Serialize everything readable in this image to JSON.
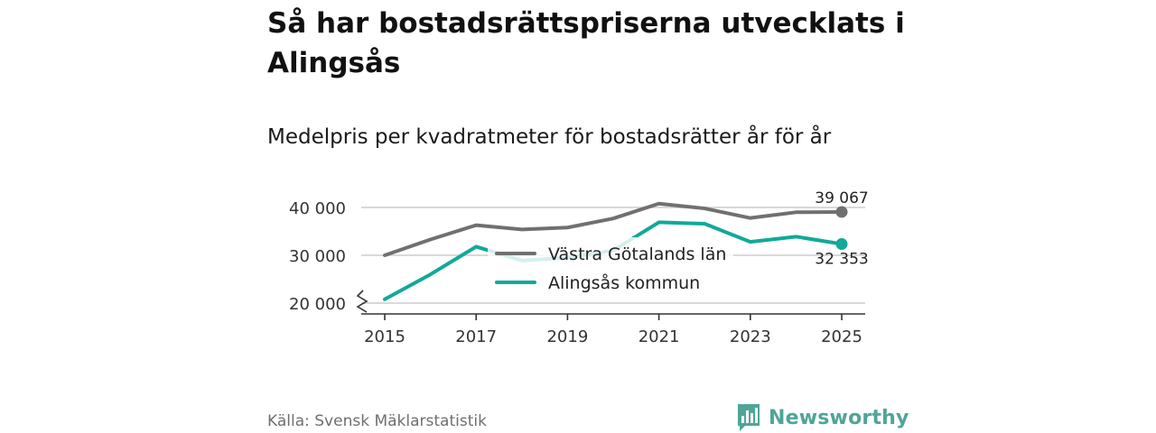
{
  "title": "Så har bostadsrättspriserna utvecklats i Alingsås",
  "subtitle": "Medelpris per kvadratmeter för bostadsrätter år för år",
  "source": "Källa: Svensk Mäklarstatistik",
  "brand": "Newsworthy",
  "colors": {
    "grey_series": "#707070",
    "teal_series": "#13a89a",
    "brand": "#4fa597"
  },
  "chart_data": {
    "type": "line",
    "x": [
      2015,
      2016,
      2017,
      2018,
      2019,
      2020,
      2021,
      2022,
      2023,
      2024,
      2025
    ],
    "x_ticks": [
      2015,
      2017,
      2019,
      2021,
      2023,
      2025
    ],
    "y_ticks": [
      20000,
      30000,
      40000
    ],
    "y_tick_labels": [
      "20 000",
      "30 000",
      "40 000"
    ],
    "ylim": [
      20000,
      41500
    ],
    "y_axis_break": true,
    "series": [
      {
        "name": "Västra Götalands län",
        "color": "#707070",
        "values": [
          30000,
          33300,
          36300,
          35400,
          35800,
          37700,
          40800,
          39800,
          37800,
          39000,
          39067
        ],
        "end_label": "39 067"
      },
      {
        "name": "Alingsås kommun",
        "color": "#13a89a",
        "values": [
          20800,
          26000,
          31800,
          28900,
          29500,
          31000,
          36900,
          36600,
          32800,
          33900,
          32353
        ],
        "end_label": "32 353"
      }
    ],
    "legend": [
      "Västra Götalands län",
      "Alingsås kommun"
    ]
  }
}
